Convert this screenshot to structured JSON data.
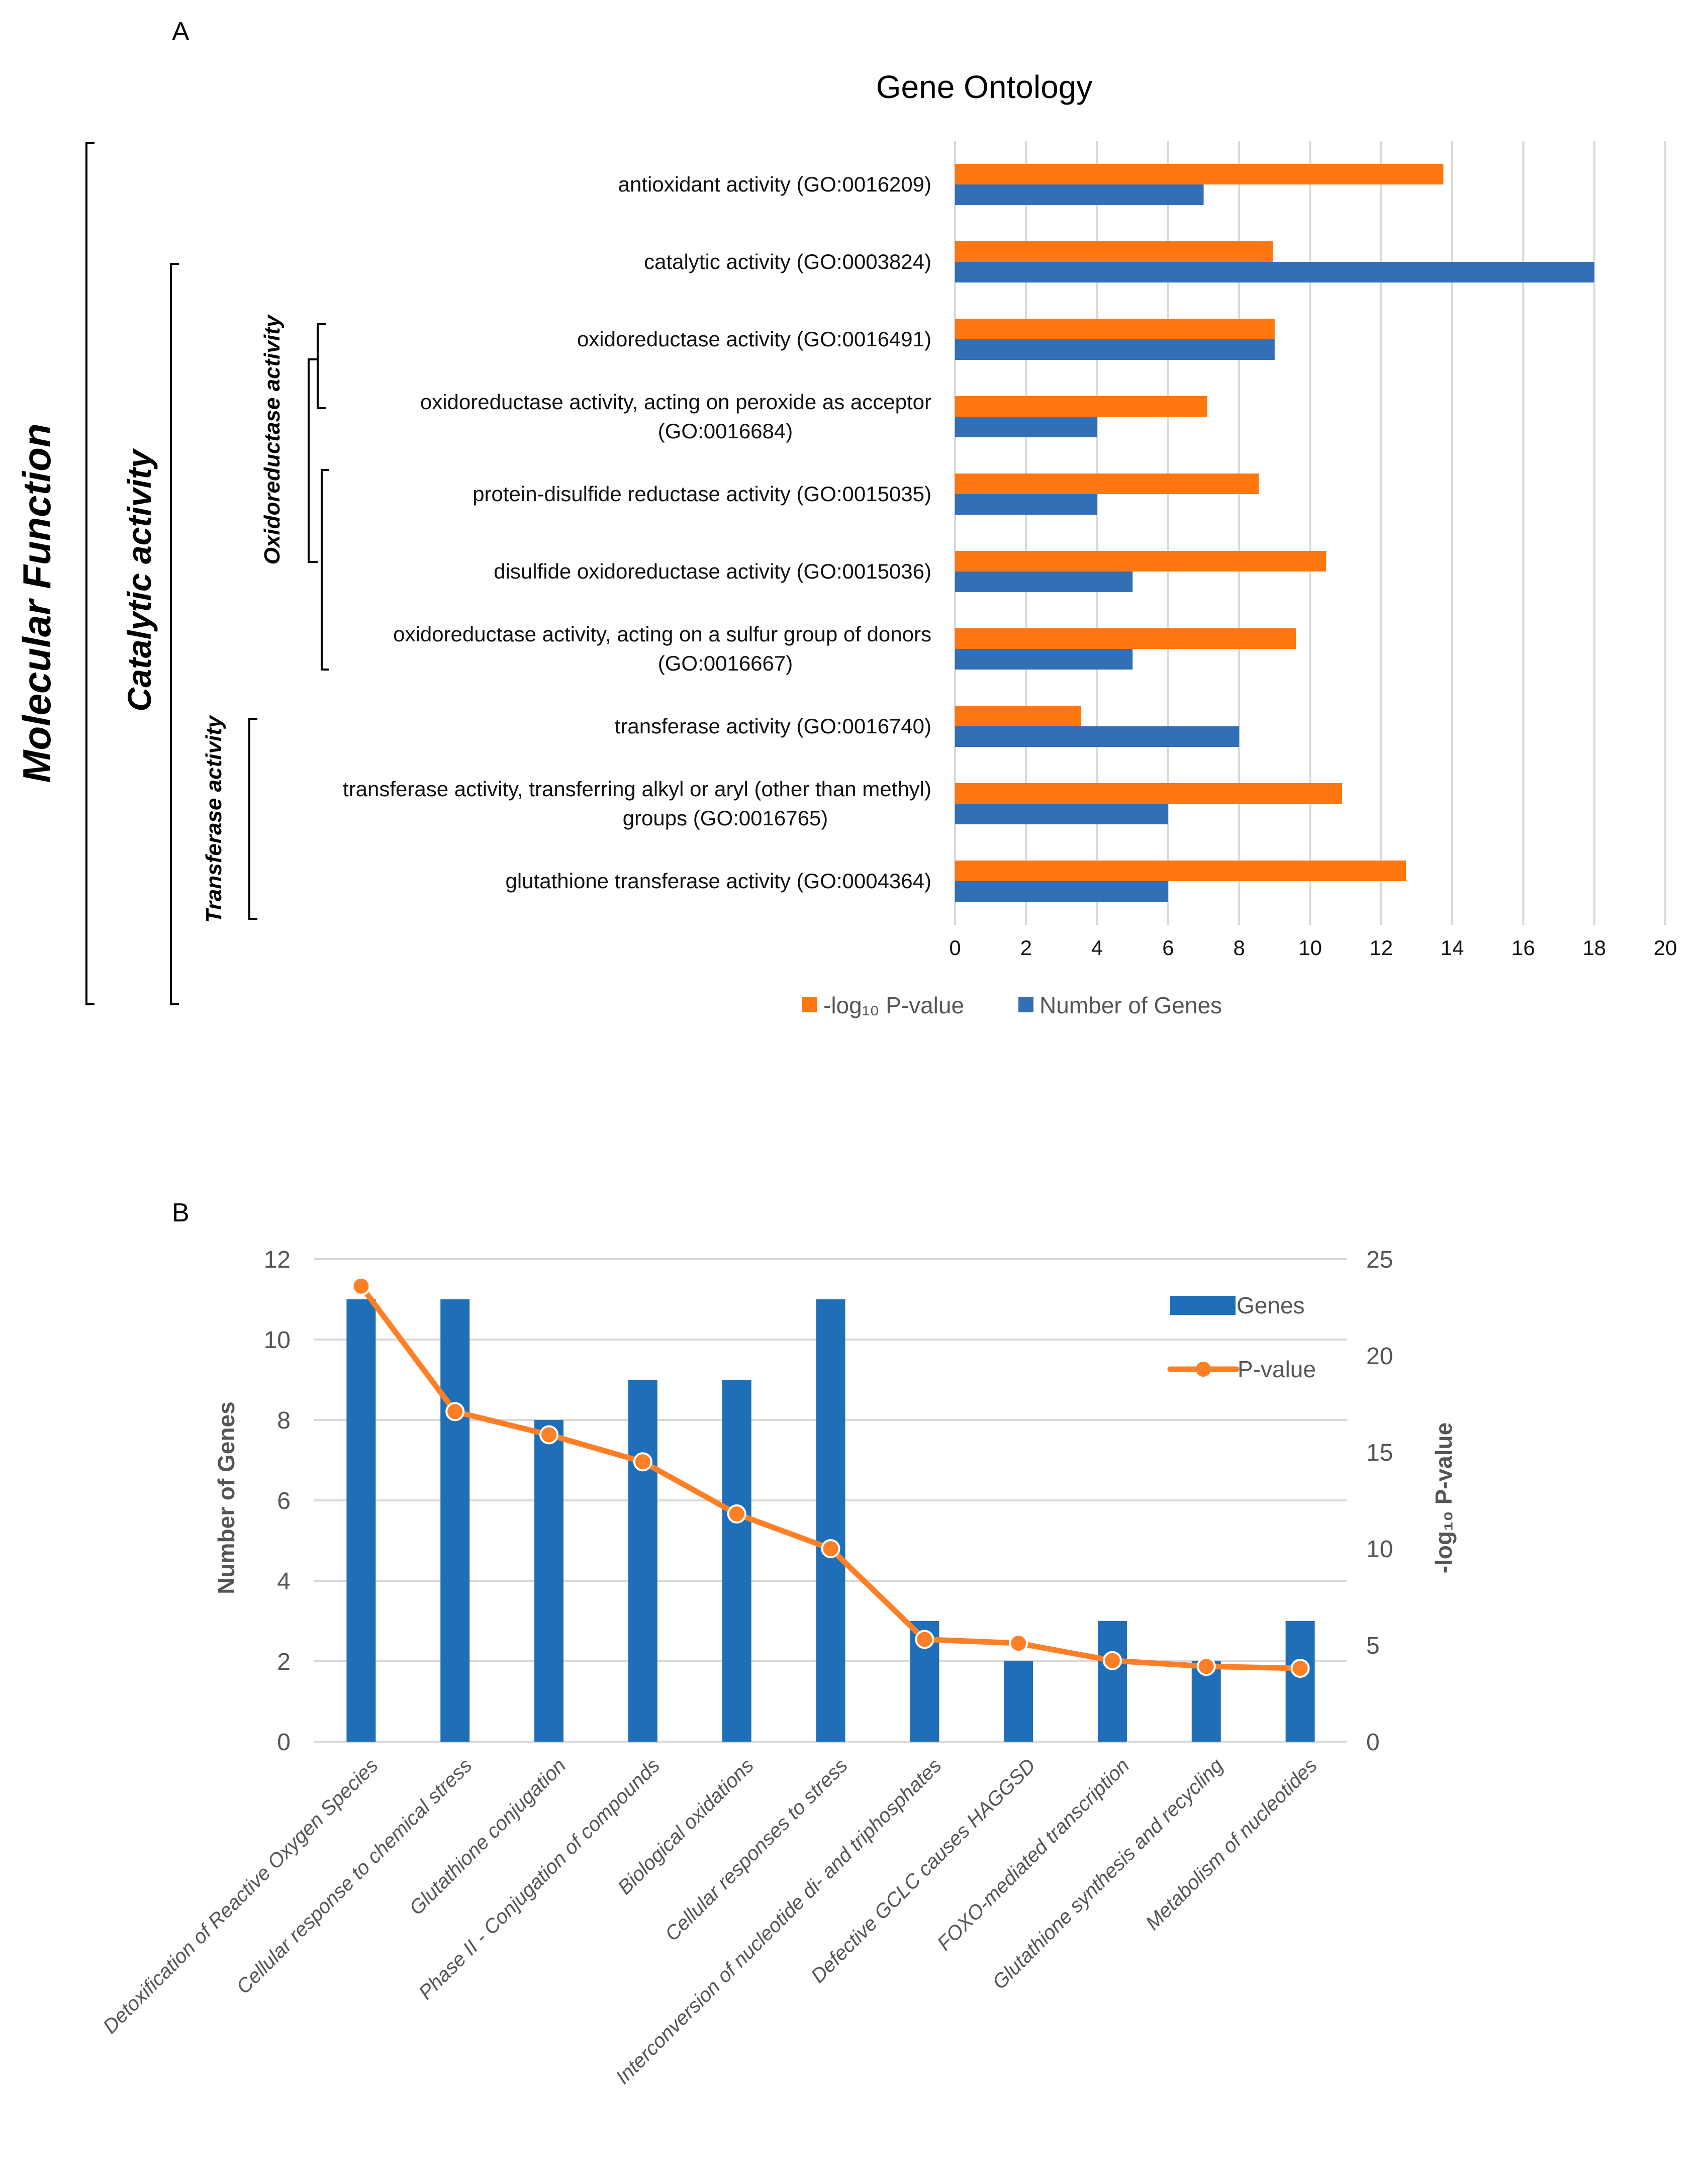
{
  "figure": {
    "panel_a_label": "A",
    "panel_b_label": "B"
  },
  "chart_data": [
    {
      "type": "bar",
      "orientation": "horizontal",
      "title": "Gene Ontology",
      "categories": [
        [
          "antioxidant activity (GO:0016209)"
        ],
        [
          "catalytic activity (GO:0003824)"
        ],
        [
          "oxidoreductase activity (GO:0016491)"
        ],
        [
          "oxidoreductase activity, acting on peroxide as acceptor",
          "(GO:0016684)"
        ],
        [
          "protein-disulfide reductase activity (GO:0015035)"
        ],
        [
          "disulfide oxidoreductase activity (GO:0015036)"
        ],
        [
          "oxidoreductase activity, acting on a sulfur group of donors",
          "(GO:0016667)"
        ],
        [
          "transferase activity (GO:0016740)"
        ],
        [
          "transferase activity, transferring alkyl or aryl (other than methyl)",
          "groups (GO:0016765)"
        ],
        [
          "glutathione transferase activity (GO:0004364)"
        ]
      ],
      "series": [
        {
          "name": "-log₁₀ P-value",
          "color": "#ff770e",
          "values": [
            13.75,
            8.95,
            9.0,
            7.1,
            8.55,
            10.45,
            9.6,
            3.55,
            10.9,
            12.7
          ]
        },
        {
          "name": "Number of Genes",
          "color": "#326fb7",
          "values": [
            7,
            18,
            9,
            4,
            4,
            5,
            5,
            8,
            6,
            6
          ]
        }
      ],
      "xlim": [
        0,
        20
      ],
      "xticks": [
        "0",
        "2",
        "4",
        "6",
        "8",
        "10",
        "12",
        "14",
        "16",
        "18",
        "20"
      ],
      "grid": true,
      "legend": {
        "position": "bottom",
        "items": [
          "-log₁₀ P-value",
          "Number of Genes"
        ]
      },
      "groups": [
        {
          "label": "Molecular Function",
          "level": 1
        },
        {
          "label": "Catalytic activity",
          "level": 2
        },
        {
          "label": "Oxidoreductase activity",
          "level": 3
        },
        {
          "label": "Transferase activity",
          "level": 3
        }
      ]
    },
    {
      "type": "bar+line",
      "title": "",
      "categories": [
        "Detoxification of Reactive Oxygen Species",
        "Cellular response to chemical stress",
        "Glutathione conjugation",
        "Phase II - Conjugation of compounds",
        "Biological oxidations",
        "Cellular responses to stress",
        "Interconversion of nucleotide di- and triphosphates",
        "Defective GCLC causes HAGGSD",
        "FOXO-mediated transcription",
        "Glutathione synthesis and recycling",
        "Metabolism of nucleotides"
      ],
      "series": [
        {
          "name": "Genes",
          "type": "bar",
          "axis": "left",
          "color": "#1f6fb8",
          "values": [
            11,
            11,
            8,
            9,
            9,
            11,
            3,
            2,
            3,
            2,
            3
          ]
        },
        {
          "name": "P-value",
          "type": "line",
          "axis": "right",
          "color": "#ff7f27",
          "values": [
            23.6,
            17.1,
            15.9,
            14.5,
            11.8,
            10.0,
            5.3,
            5.1,
            4.2,
            3.9,
            3.8
          ]
        }
      ],
      "ylabel": "Number of Genes",
      "ylim": [
        0,
        12
      ],
      "yticks": [
        "0",
        "2",
        "4",
        "6",
        "8",
        "10",
        "12"
      ],
      "y2label": "-log₁₀ P-value",
      "y2lim": [
        0,
        25
      ],
      "y2ticks": [
        "0",
        "5",
        "10",
        "15",
        "20",
        "25"
      ],
      "grid": true,
      "legend": {
        "position": "top-right",
        "items": [
          "Genes",
          "P-value"
        ]
      }
    }
  ]
}
